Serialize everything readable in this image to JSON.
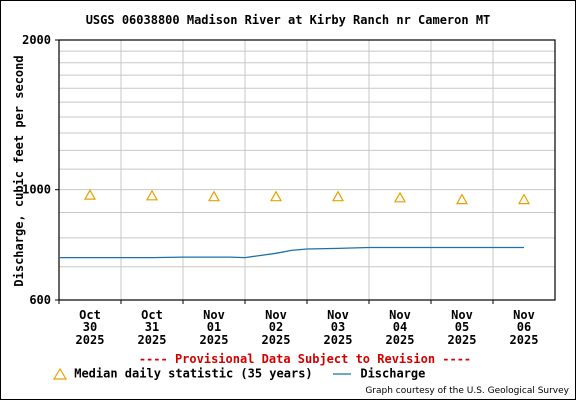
{
  "chart_data": {
    "type": "line",
    "title": "USGS 06038800 Madison River at Kirby Ranch nr Cameron MT",
    "ylabel": "Discharge, cubic feet per second",
    "xlabel": "",
    "y_scale": "log",
    "ylim": [
      600,
      2000
    ],
    "y_ticks": [
      "2000",
      "1000",
      "600"
    ],
    "grid": true,
    "x_ticks": [
      {
        "month": "Oct",
        "day": "30",
        "year": "2025"
      },
      {
        "month": "Oct",
        "day": "31",
        "year": "2025"
      },
      {
        "month": "Nov",
        "day": "01",
        "year": "2025"
      },
      {
        "month": "Nov",
        "day": "02",
        "year": "2025"
      },
      {
        "month": "Nov",
        "day": "03",
        "year": "2025"
      },
      {
        "month": "Nov",
        "day": "04",
        "year": "2025"
      },
      {
        "month": "Nov",
        "day": "05",
        "year": "2025"
      },
      {
        "month": "Nov",
        "day": "06",
        "year": "2025"
      }
    ],
    "series": [
      {
        "name": "Discharge",
        "color": "#1f6fa8",
        "kind": "line",
        "x": [
          "2025-10-29 00:00",
          "2025-10-29 12:00",
          "2025-10-30 00:00",
          "2025-10-30 12:00",
          "2025-10-31 00:00",
          "2025-10-31 12:00",
          "2025-11-01 00:00",
          "2025-11-01 12:00",
          "2025-11-01 18:00",
          "2025-11-02 00:00",
          "2025-11-02 12:00",
          "2025-11-02 18:00",
          "2025-11-03 00:00",
          "2025-11-03 12:00",
          "2025-11-04 00:00",
          "2025-11-04 12:00",
          "2025-11-05 00:00",
          "2025-11-05 12:00",
          "2025-11-06 00:00",
          "2025-11-06 12:00"
        ],
        "y": [
          730,
          730,
          730,
          730,
          730,
          730,
          732,
          732,
          732,
          730,
          745,
          755,
          760,
          762,
          765,
          765,
          765,
          765,
          765,
          765
        ]
      },
      {
        "name": "Median daily statistic (35 years)",
        "color": "#e8a000",
        "kind": "marker",
        "x": [
          "2025-10-30 12:00",
          "2025-10-31 12:00",
          "2025-11-01 12:00",
          "2025-11-02 12:00",
          "2025-11-03 12:00",
          "2025-11-04 12:00",
          "2025-11-05 12:00",
          "2025-11-06 12:00"
        ],
        "y": [
          975,
          972,
          968,
          968,
          968,
          963,
          955,
          955
        ]
      }
    ],
    "legend_position": "bottom"
  },
  "footer": {
    "provisional": "---- Provisional Data Subject to Revision ----",
    "credit": "Graph courtesy of the U.S. Geological Survey"
  }
}
